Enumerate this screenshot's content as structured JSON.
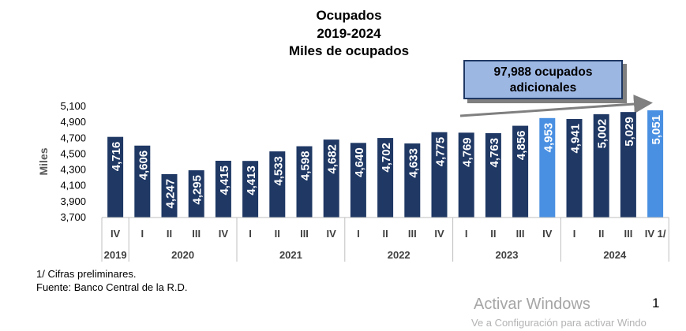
{
  "title_lines": [
    "Ocupados",
    "2019-2024",
    "Miles de ocupados"
  ],
  "callout": {
    "line1": "97,988 ocupados",
    "line2": "adicionales"
  },
  "notes": {
    "preliminary": "1/ Cifras preliminares.",
    "source": "Fuente: Banco Central de la R.D."
  },
  "watermark": {
    "line1": "Activar Windows",
    "line2": "Ve a Configuración para activar Windo"
  },
  "page_number": "1",
  "colors": {
    "dark_bar": "#1f3864",
    "highlight_bar": "#4a90e2",
    "callout_fill": "#9db7e3",
    "arrow": "#808080"
  },
  "chart_data": {
    "type": "bar",
    "title": "Ocupados",
    "ylabel": "Miles",
    "ylim": [
      3700,
      5100
    ],
    "yticks": [
      3700,
      3900,
      4100,
      4300,
      4500,
      4700,
      4900,
      5100
    ],
    "ytick_labels": [
      "3,700",
      "3,900",
      "4,100",
      "4,300",
      "4,500",
      "4,700",
      "4,900",
      "5,100"
    ],
    "categories": [
      "IV",
      "I",
      "II",
      "III",
      "IV",
      "I",
      "II",
      "III",
      "IV",
      "I",
      "II",
      "III",
      "IV",
      "I",
      "II",
      "III",
      "IV",
      "I",
      "II",
      "III",
      "IV 1/"
    ],
    "values": [
      4716,
      4606,
      4247,
      4295,
      4415,
      4413,
      4533,
      4598,
      4682,
      4640,
      4702,
      4633,
      4775,
      4769,
      4763,
      4856,
      4953,
      4941,
      5002,
      5029,
      5051
    ],
    "value_labels": [
      "4,716",
      "4,606",
      "4,247",
      "4,295",
      "4,415",
      "4,413",
      "4,533",
      "4,598",
      "4,682",
      "4,640",
      "4,702",
      "4,633",
      "4,775",
      "4,769",
      "4,763",
      "4,856",
      "4,953",
      "4,941",
      "5,002",
      "5,029",
      "5,051"
    ],
    "highlighted": [
      false,
      false,
      false,
      false,
      false,
      false,
      false,
      false,
      false,
      false,
      false,
      false,
      false,
      false,
      false,
      false,
      true,
      false,
      false,
      false,
      true
    ],
    "years": [
      {
        "label": "2019",
        "count": 1
      },
      {
        "label": "2020",
        "count": 4
      },
      {
        "label": "2021",
        "count": 4
      },
      {
        "label": "2022",
        "count": 4
      },
      {
        "label": "2023",
        "count": 4
      },
      {
        "label": "2024",
        "count": 4
      }
    ]
  }
}
